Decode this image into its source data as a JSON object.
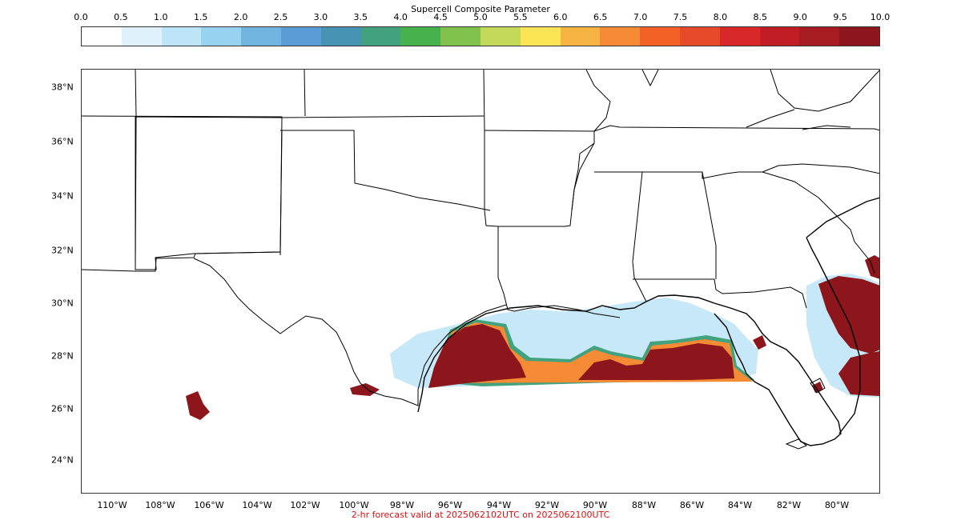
{
  "colorbar": {
    "title": "Supercell Composite Parameter",
    "ticks": [
      "0.0",
      "0.5",
      "1.0",
      "1.5",
      "2.0",
      "2.5",
      "3.0",
      "3.5",
      "4.0",
      "4.5",
      "5.0",
      "5.5",
      "6.0",
      "6.5",
      "7.0",
      "7.5",
      "8.0",
      "8.5",
      "9.0",
      "9.5",
      "10.0"
    ],
    "colors": [
      "#ffffff",
      "#dff1fb",
      "#bde4f7",
      "#97d3f1",
      "#72b4e0",
      "#5b9cd6",
      "#4693b4",
      "#43a27e",
      "#46b24e",
      "#80c24b",
      "#c3d957",
      "#fbe556",
      "#f8b442",
      "#f68b35",
      "#f36129",
      "#e64a28",
      "#d92829",
      "#c01d25",
      "#a71b22",
      "#8c161b"
    ]
  },
  "map": {
    "lat_labels": [
      "38°N",
      "36°N",
      "34°N",
      "32°N",
      "30°N",
      "28°N",
      "26°N",
      "24°N"
    ],
    "lon_labels": [
      "110°W",
      "108°W",
      "106°W",
      "104°W",
      "102°W",
      "100°W",
      "98°W",
      "96°W",
      "94°W",
      "92°W",
      "90°W",
      "88°W",
      "86°W",
      "84°W",
      "82°W",
      "80°W"
    ]
  },
  "footer": "2-hr forecast valid at 2025062102UTC on 2025062100UTC"
}
